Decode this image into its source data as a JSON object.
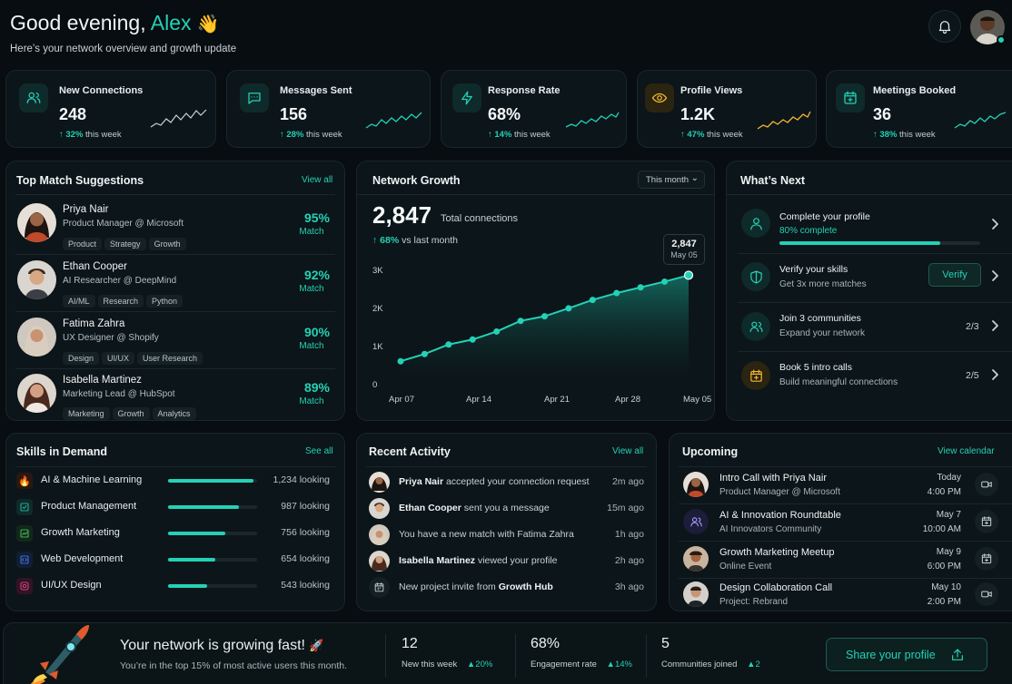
{
  "header": {
    "greeting": "Good evening,",
    "name": "Alex",
    "wave": "👋",
    "subtitle": "Here’s your network overview and growth update"
  },
  "stats": [
    {
      "label": "New Connections",
      "value": "248",
      "change": "32%",
      "period": "this week",
      "icon": "users-icon",
      "spark": "teal"
    },
    {
      "label": "Messages Sent",
      "value": "156",
      "change": "28%",
      "period": "this week",
      "icon": "message-icon",
      "spark": "teal"
    },
    {
      "label": "Response Rate",
      "value": "68%",
      "change": "14%",
      "period": "this week",
      "icon": "bolt-icon",
      "spark": "teal"
    },
    {
      "label": "Profile Views",
      "value": "1.2K",
      "change": "47%",
      "period": "this week",
      "icon": "eye-icon",
      "spark": "amber"
    },
    {
      "label": "Meetings Booked",
      "value": "36",
      "change": "38%",
      "period": "this week",
      "icon": "calendar-plus-icon",
      "spark": "teal"
    }
  ],
  "matches": {
    "title": "Top Match Suggestions",
    "view_all": "View all",
    "items": [
      {
        "name": "Priya Nair",
        "role": "Product Manager @ Microsoft",
        "tags": [
          "Product",
          "Strategy",
          "Growth"
        ],
        "score": "95%",
        "score_label": "Match"
      },
      {
        "name": "Ethan Cooper",
        "role": "AI Researcher @ DeepMind",
        "tags": [
          "AI/ML",
          "Research",
          "Python"
        ],
        "score": "92%",
        "score_label": "Match"
      },
      {
        "name": "Fatima Zahra",
        "role": "UX Designer @ Shopify",
        "tags": [
          "Design",
          "UI/UX",
          "User Research"
        ],
        "score": "90%",
        "score_label": "Match"
      },
      {
        "name": "Isabella Martinez",
        "role": "Marketing Lead @ HubSpot",
        "tags": [
          "Marketing",
          "Growth",
          "Analytics"
        ],
        "score": "89%",
        "score_label": "Match"
      }
    ]
  },
  "growth": {
    "title": "Network Growth",
    "filter": "This month",
    "total": "2,847",
    "total_label": "Total connections",
    "change": "68%",
    "change_label": "vs last month",
    "tooltip_value": "2,847",
    "tooltip_date": "May 05"
  },
  "chart_data": {
    "type": "area",
    "title": "Network Growth",
    "ylim": [
      0,
      3000
    ],
    "yticks": [
      "3K",
      "2K",
      "1K",
      "0"
    ],
    "xticks": [
      "Apr 07",
      "Apr 14",
      "Apr 21",
      "Apr 28",
      "May 05"
    ],
    "values": [
      590,
      780,
      1030,
      1160,
      1370,
      1650,
      1770,
      1980,
      2200,
      2380,
      2530,
      2680,
      2847
    ]
  },
  "next": {
    "title": "What’s Next",
    "items": [
      {
        "title": "Complete your profile",
        "subtitle": "80% complete",
        "progress": 0.8,
        "icon": "user-icon"
      },
      {
        "title": "Verify your skills",
        "subtitle": "Get 3x more matches",
        "action": "Verify",
        "icon": "shield-icon"
      },
      {
        "title": "Join 3 communities",
        "subtitle": "Expand your network",
        "count": "2/3",
        "icon": "users-icon"
      },
      {
        "title": "Book 5 intro calls",
        "subtitle": "Build meaningful connections",
        "count": "2/5",
        "icon": "calendar-plus-icon"
      }
    ]
  },
  "skills": {
    "title": "Skills in Demand",
    "see_all": "See all",
    "items": [
      {
        "name": "AI & Machine Learning",
        "count": "1,234 looking",
        "level": 1.0,
        "icon": "fire-icon",
        "color": "#ff6a2b"
      },
      {
        "name": "Product Management",
        "count": "987 looking",
        "level": 0.8,
        "icon": "checklist-icon",
        "color": "#24d1b6"
      },
      {
        "name": "Growth Marketing",
        "count": "756 looking",
        "level": 0.61,
        "icon": "trend-icon",
        "color": "#4cd964"
      },
      {
        "name": "Web Development",
        "count": "654 looking",
        "level": 0.53,
        "icon": "code-icon",
        "color": "#4a8cff"
      },
      {
        "name": "UI/UX Design",
        "count": "543 looking",
        "level": 0.44,
        "icon": "design-icon",
        "color": "#ff4fa0"
      }
    ]
  },
  "activity": {
    "title": "Recent Activity",
    "view_all": "View all",
    "items": [
      {
        "bold": "Priya Nair",
        "text": " accepted your connection request",
        "time": "2m ago"
      },
      {
        "bold": "Ethan Cooper",
        "text": " sent you a message",
        "time": "15m ago"
      },
      {
        "bold": "",
        "text": "You have a new match with Fatima Zahra",
        "time": "1h ago"
      },
      {
        "bold": "Isabella Martinez",
        "text": " viewed your profile",
        "time": "2h ago"
      },
      {
        "bold": "Growth Hub",
        "text": "New project invite from ",
        "time": "3h ago"
      }
    ]
  },
  "upcoming": {
    "title": "Upcoming",
    "view_calendar": "View calendar",
    "items": [
      {
        "title": "Intro Call with Priya Nair",
        "subtitle": "Product Manager @ Microsoft",
        "day": "Today",
        "time": "4:00 PM",
        "icon": "video-icon"
      },
      {
        "title": "AI & Innovation Roundtable",
        "subtitle": "AI Innovators Community",
        "day": "May 7",
        "time": "10:00 AM",
        "icon": "calendar-plus-icon"
      },
      {
        "title": "Growth Marketing Meetup",
        "subtitle": "Online Event",
        "day": "May 9",
        "time": "6:00 PM",
        "icon": "calendar-plus-icon"
      },
      {
        "title": "Design Collaboration Call",
        "subtitle": "Project: Rebrand",
        "day": "May 10",
        "time": "2:00 PM",
        "icon": "video-icon"
      }
    ]
  },
  "banner": {
    "title": "Your network is growing fast!",
    "emoji": "🚀",
    "subtitle": "You’re in the top 15% of most active users this month.",
    "stats": [
      {
        "value": "12",
        "label": "New this week",
        "change": "20%"
      },
      {
        "value": "68%",
        "label": "Engagement rate",
        "change": "14%"
      },
      {
        "value": "5",
        "label": "Communities joined",
        "change": "2"
      }
    ],
    "share": "Share your profile"
  }
}
